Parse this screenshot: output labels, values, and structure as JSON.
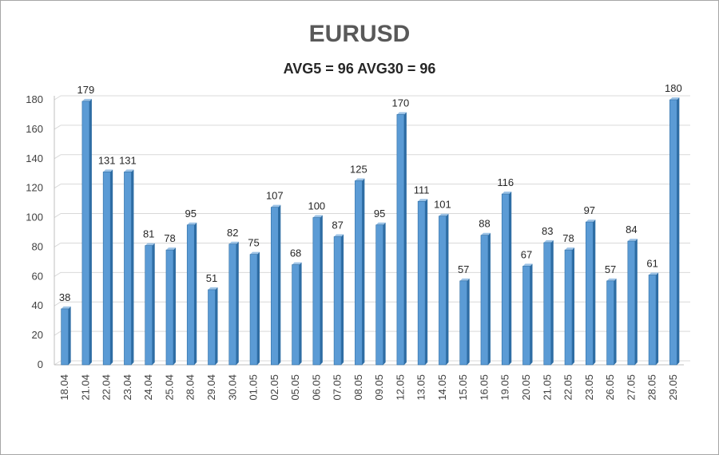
{
  "chart_data": {
    "type": "bar",
    "title": "EURUSD",
    "subtitle": "AVG5 = 96 AVG30 = 96",
    "xlabel": "",
    "ylabel": "",
    "ylim": [
      0,
      180
    ],
    "yticks": [
      0,
      20,
      40,
      60,
      80,
      100,
      120,
      140,
      160,
      180
    ],
    "categories": [
      "18.04",
      "21.04",
      "22.04",
      "23.04",
      "24.04",
      "25.04",
      "28.04",
      "29.04",
      "30.04",
      "01.05",
      "02.05",
      "05.05",
      "06.05",
      "07.05",
      "08.05",
      "09.05",
      "12.05",
      "13.05",
      "14.05",
      "15.05",
      "16.05",
      "19.05",
      "20.05",
      "21.05",
      "22.05",
      "23.05",
      "26.05",
      "27.05",
      "28.05",
      "29.05"
    ],
    "values": [
      38,
      179,
      131,
      131,
      81,
      78,
      95,
      51,
      82,
      75,
      107,
      68,
      100,
      87,
      125,
      95,
      170,
      111,
      101,
      57,
      88,
      116,
      67,
      83,
      78,
      97,
      57,
      84,
      61,
      180
    ],
    "grid": true,
    "legend": "none"
  },
  "colors": {
    "bar_front": "#5b9bd5",
    "bar_side": "#2e6da4",
    "bar_top": "#9dc3e6",
    "grid": "#d9d9d9",
    "axis": "#bfbfbf"
  }
}
